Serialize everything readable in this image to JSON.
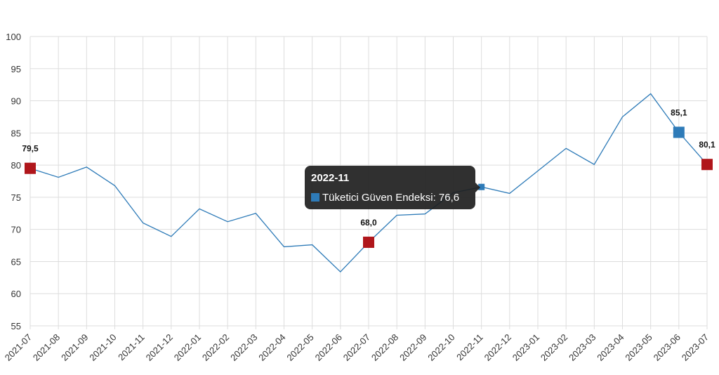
{
  "chart_data": {
    "type": "line",
    "categories": [
      "2021-07",
      "2021-08",
      "2021-09",
      "2021-10",
      "2021-11",
      "2021-12",
      "2022-01",
      "2022-02",
      "2022-03",
      "2022-04",
      "2022-05",
      "2022-06",
      "2022-07",
      "2022-08",
      "2022-09",
      "2022-10",
      "2022-11",
      "2022-12",
      "2023-01",
      "2023-02",
      "2023-03",
      "2023-04",
      "2023-05",
      "2023-06",
      "2023-07"
    ],
    "series": [
      {
        "name": "Tüketici Güven Endeksi",
        "values": [
          79.5,
          78.1,
          79.7,
          76.8,
          71.0,
          68.9,
          73.2,
          71.2,
          72.5,
          67.3,
          67.6,
          63.4,
          68.0,
          72.2,
          72.4,
          75.7,
          76.6,
          75.6,
          79.1,
          82.6,
          80.1,
          87.5,
          91.1,
          85.1,
          80.1
        ],
        "color": "#2e7bb8"
      }
    ],
    "ylim": [
      55,
      100
    ],
    "yticks": [
      55,
      60,
      65,
      70,
      75,
      80,
      85,
      90,
      95,
      100
    ],
    "grid": true,
    "highlights": [
      {
        "category": "2021-07",
        "label": "79,5",
        "color": "#b0161b"
      },
      {
        "category": "2022-07",
        "label": "68,0",
        "color": "#b0161b"
      },
      {
        "category": "2023-06",
        "label": "85,1",
        "color": "#2e7bb8"
      },
      {
        "category": "2023-07",
        "label": "80,1",
        "color": "#b0161b"
      }
    ],
    "hovered_category": "2022-11"
  },
  "tooltip": {
    "title": "2022-11",
    "text": "Tüketici Güven Endeksi: 76,6",
    "swatch_color": "#2e7bb8"
  }
}
